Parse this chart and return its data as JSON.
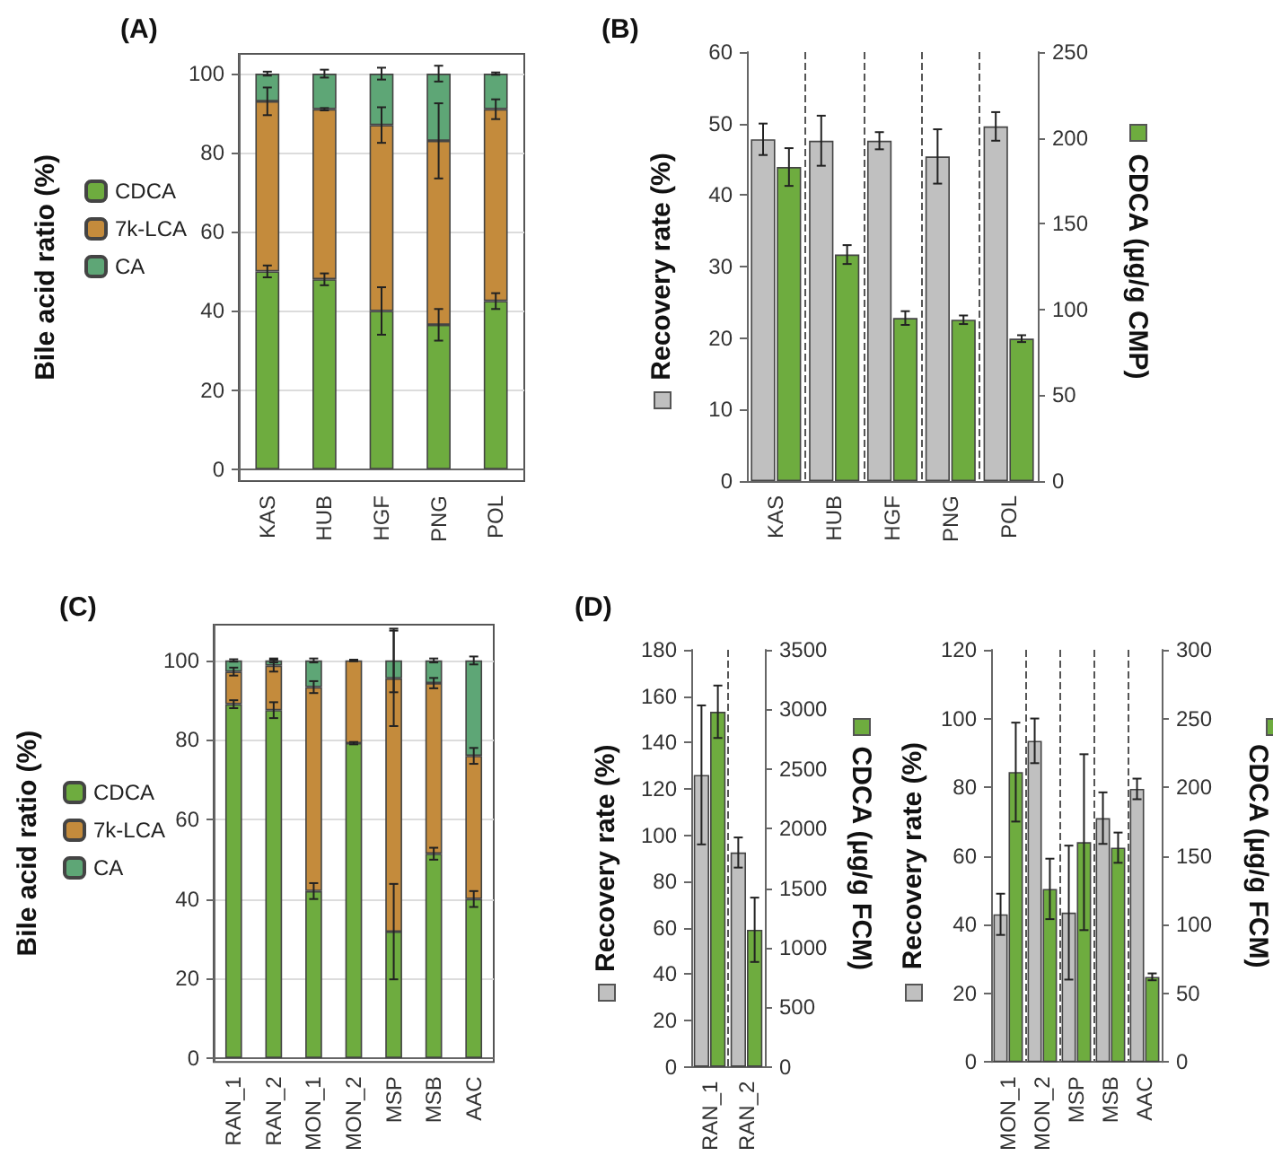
{
  "chart_data": [
    {
      "type": "bar",
      "title": "(A)",
      "ylabel": "Bile acid ratio (%)",
      "categories": [
        "KAS",
        "HUB",
        "HGF",
        "PNG",
        "POL"
      ],
      "stacked": true,
      "ylim": [
        -3,
        105
      ],
      "yticks": [
        0,
        20,
        40,
        60,
        80,
        100
      ],
      "grid": "y",
      "legend": "left",
      "series": [
        {
          "name": "CDCA",
          "color": "#6eac3f",
          "values": [
            50,
            48,
            40,
            36.5,
            42.5
          ],
          "errors": [
            1.5,
            1.5,
            6,
            4,
            2
          ]
        },
        {
          "name": "7k-LCA",
          "color": "#c48b3c",
          "values": [
            43,
            43,
            47,
            46.5,
            48.5
          ],
          "errors": [
            3.5,
            0.3,
            4.5,
            9.5,
            2.5
          ]
        },
        {
          "name": "CA",
          "color": "#5ea676",
          "values": [
            7,
            9,
            13,
            17,
            9
          ],
          "errors": [
            0.5,
            1,
            1.5,
            2,
            0.3
          ]
        }
      ]
    },
    {
      "type": "bar",
      "title": "(B)",
      "ylabel": "Recovery rate (%)",
      "y2label": "CDCA (µg/g CMP)",
      "categories": [
        "KAS",
        "HUB",
        "HGF",
        "PNG",
        "POL"
      ],
      "ylim": [
        0,
        60
      ],
      "yticks": [
        0,
        10,
        20,
        30,
        40,
        50,
        60
      ],
      "y2lim": [
        0,
        250
      ],
      "y2ticks": [
        0,
        50,
        100,
        150,
        200,
        250
      ],
      "grid": "x",
      "series": [
        {
          "color": "#c0c0c0",
          "values": [
            47.8,
            47.6,
            47.6,
            45.4,
            49.6
          ],
          "errors": [
            2.2,
            3.5,
            1.2,
            3.8,
            2
          ]
        },
        {
          "color": "#6eac3f",
          "axis": "y2",
          "values": [
            183,
            132,
            95,
            94,
            83
          ],
          "errors": [
            11,
            5.5,
            4,
            2.5,
            2
          ]
        }
      ]
    },
    {
      "type": "bar",
      "title": "(C)",
      "ylabel": "Bile acid ratio (%)",
      "categories": [
        "RAN_1",
        "RAN_2",
        "MON_1",
        "MON_2",
        "MSP",
        "MSB",
        "AAC"
      ],
      "stacked": true,
      "ylim": [
        -1,
        109
      ],
      "yticks": [
        0,
        20,
        40,
        60,
        80,
        100
      ],
      "grid": "y",
      "legend": "left",
      "series": [
        {
          "name": "CDCA",
          "color": "#6eac3f",
          "values": [
            89,
            87.5,
            42,
            79.2,
            31.8,
            51.4,
            40
          ],
          "errors": [
            1,
            2,
            2,
            0.3,
            12,
            1.5,
            2
          ]
        },
        {
          "name": "7k-LCA",
          "color": "#c48b3c",
          "values": [
            8.2,
            11.2,
            51.3,
            20.8,
            63.7,
            42.9,
            36
          ],
          "errors": [
            1,
            1.5,
            1.5,
            0.2,
            12,
            1.3,
            2
          ]
        },
        {
          "name": "CA",
          "color": "#5ea676",
          "values": [
            2.8,
            1.3,
            6.7,
            null,
            4.5,
            5.7,
            24
          ],
          "errors": [
            0.3,
            0.5,
            0.5,
            null,
            8,
            0.5,
            1
          ]
        }
      ]
    },
    {
      "type": "bar",
      "title": "(D)",
      "ylabel": "Recovery rate (%)",
      "y2label": "CDCA (µg/g FCM)",
      "categories": [
        "RAN_1",
        "RAN_2"
      ],
      "ylim": [
        0,
        180
      ],
      "yticks": [
        0,
        20,
        40,
        60,
        80,
        100,
        120,
        140,
        160,
        180
      ],
      "y2lim": [
        0,
        3500
      ],
      "y2ticks": [
        0,
        500,
        1000,
        1500,
        2000,
        2500,
        3000,
        3500
      ],
      "grid": "x",
      "series": [
        {
          "color": "#c0c0c0",
          "values": [
            126,
            92.5
          ],
          "errors": [
            30,
            6.5
          ]
        },
        {
          "color": "#6eac3f",
          "axis": "y2",
          "values": [
            2980,
            1150
          ],
          "errors": [
            220,
            270
          ]
        }
      ]
    },
    {
      "type": "bar",
      "ylabel": "Recovery rate (%)",
      "y2label": "CDCA (µg/g FCM)",
      "categories": [
        "MON_1",
        "MON_2",
        "MSP",
        "MSB",
        "AAC"
      ],
      "ylim": [
        0,
        120
      ],
      "yticks": [
        0,
        20,
        40,
        60,
        80,
        100,
        120
      ],
      "y2lim": [
        0,
        300
      ],
      "y2ticks": [
        0,
        50,
        100,
        150,
        200,
        250,
        300
      ],
      "grid": "x",
      "series": [
        {
          "color": "#c0c0c0",
          "values": [
            43,
            93.5,
            43.5,
            71,
            79.5
          ],
          "errors": [
            6,
            6.5,
            19.5,
            7.5,
            3
          ]
        },
        {
          "color": "#6eac3f",
          "axis": "y2",
          "values": [
            211,
            126,
            160,
            156,
            62
          ],
          "errors": [
            36,
            22,
            64,
            11,
            2.5
          ]
        }
      ]
    }
  ]
}
